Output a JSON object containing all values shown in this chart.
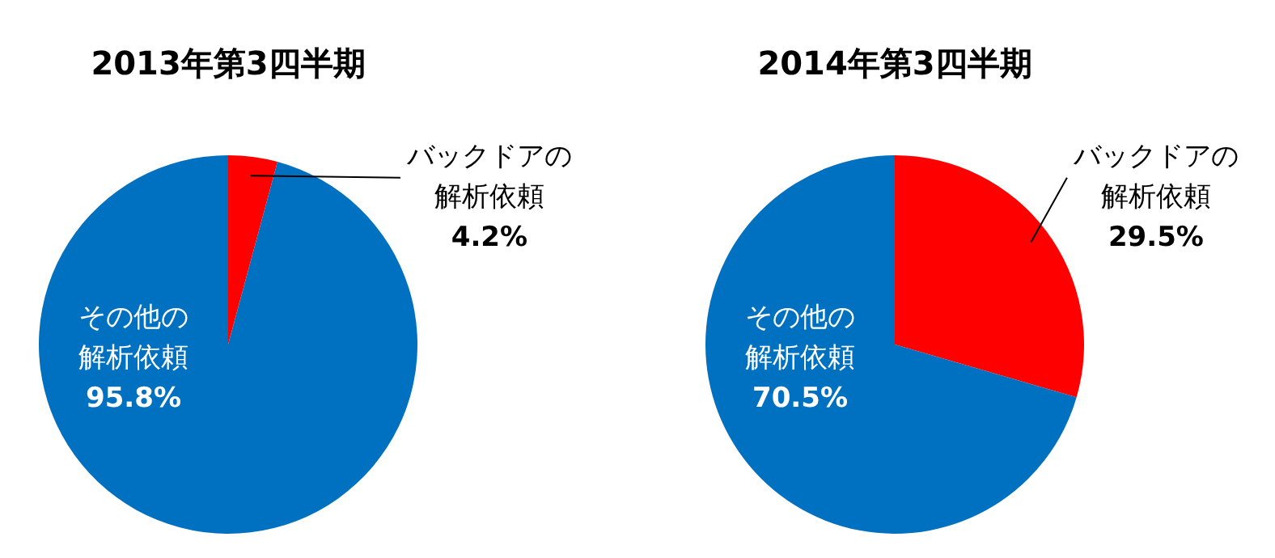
{
  "chart_data": [
    {
      "type": "pie",
      "title": "2013年第3四半期",
      "categories": [
        "バックドアの解析依頼",
        "その他の解析依頼"
      ],
      "values": [
        4.2,
        95.8
      ],
      "colors": [
        "#ff0000",
        "#0070c0"
      ],
      "value_labels": [
        "4.2%",
        "95.8%"
      ]
    },
    {
      "type": "pie",
      "title": "2014年第3四半期",
      "categories": [
        "バックドアの解析依頼",
        "その他の解析依頼"
      ],
      "values": [
        29.5,
        70.5
      ],
      "colors": [
        "#ff0000",
        "#0070c0"
      ],
      "value_labels": [
        "29.5%",
        "70.5%"
      ]
    }
  ]
}
